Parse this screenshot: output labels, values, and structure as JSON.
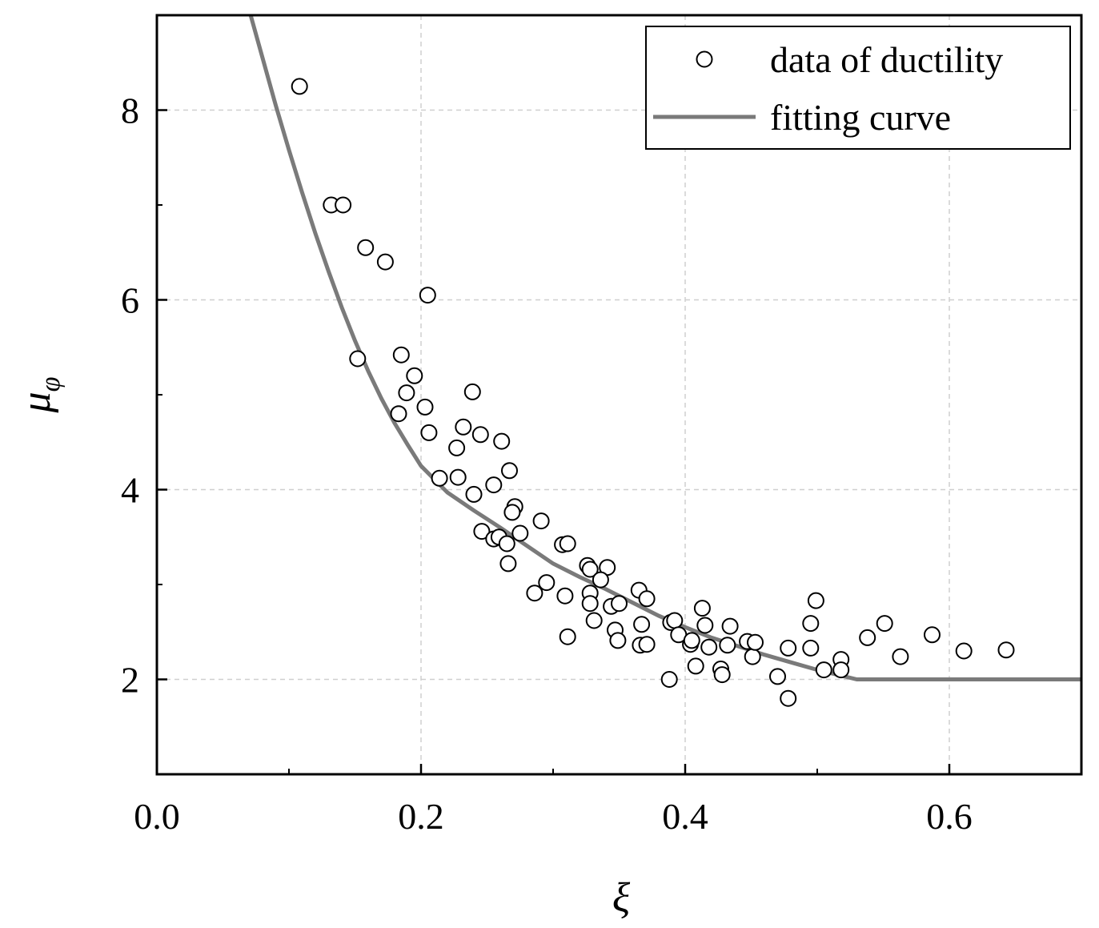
{
  "chart_data": {
    "type": "scatter",
    "xlabel": "ξ",
    "ylabel": "μ",
    "ylabel_subscript": "φ",
    "xlim": [
      0.0,
      0.7
    ],
    "ylim": [
      1.0,
      9.0
    ],
    "x_ticks": [
      0.0,
      0.2,
      0.4,
      0.6
    ],
    "x_tick_labels": [
      "0.0",
      "0.2",
      "0.4",
      "0.6"
    ],
    "x_minor_ticks": [
      0.1,
      0.3,
      0.5
    ],
    "y_ticks": [
      2,
      4,
      6,
      8
    ],
    "y_tick_labels": [
      "2",
      "4",
      "6",
      "8"
    ],
    "y_minor_ticks": [
      3,
      5,
      7
    ],
    "grid": true,
    "legend": {
      "position": "top-right",
      "entries": [
        "data of ductility",
        "fitting curve"
      ]
    },
    "series": [
      {
        "name": "data of ductility",
        "kind": "scatter",
        "marker": "open-circle",
        "color": "#000000",
        "points": [
          [
            0.108,
            8.25
          ],
          [
            0.132,
            7.0
          ],
          [
            0.141,
            7.0
          ],
          [
            0.158,
            6.55
          ],
          [
            0.173,
            6.4
          ],
          [
            0.205,
            6.05
          ],
          [
            0.152,
            5.38
          ],
          [
            0.185,
            5.42
          ],
          [
            0.195,
            5.2
          ],
          [
            0.189,
            5.02
          ],
          [
            0.183,
            4.8
          ],
          [
            0.203,
            4.87
          ],
          [
            0.206,
            4.6
          ],
          [
            0.239,
            5.03
          ],
          [
            0.232,
            4.66
          ],
          [
            0.245,
            4.58
          ],
          [
            0.227,
            4.44
          ],
          [
            0.261,
            4.51
          ],
          [
            0.267,
            4.2
          ],
          [
            0.214,
            4.12
          ],
          [
            0.228,
            4.13
          ],
          [
            0.255,
            4.05
          ],
          [
            0.24,
            3.95
          ],
          [
            0.271,
            3.82
          ],
          [
            0.269,
            3.76
          ],
          [
            0.275,
            3.54
          ],
          [
            0.291,
            3.67
          ],
          [
            0.246,
            3.56
          ],
          [
            0.255,
            3.48
          ],
          [
            0.259,
            3.5
          ],
          [
            0.265,
            3.43
          ],
          [
            0.266,
            3.22
          ],
          [
            0.307,
            3.42
          ],
          [
            0.311,
            3.43
          ],
          [
            0.326,
            3.2
          ],
          [
            0.328,
            3.16
          ],
          [
            0.341,
            3.18
          ],
          [
            0.336,
            3.05
          ],
          [
            0.295,
            3.02
          ],
          [
            0.286,
            2.91
          ],
          [
            0.309,
            2.88
          ],
          [
            0.328,
            2.91
          ],
          [
            0.328,
            2.8
          ],
          [
            0.344,
            2.77
          ],
          [
            0.35,
            2.8
          ],
          [
            0.365,
            2.94
          ],
          [
            0.371,
            2.85
          ],
          [
            0.331,
            2.62
          ],
          [
            0.347,
            2.52
          ],
          [
            0.349,
            2.41
          ],
          [
            0.311,
            2.45
          ],
          [
            0.367,
            2.58
          ],
          [
            0.366,
            2.36
          ],
          [
            0.371,
            2.37
          ],
          [
            0.389,
            2.6
          ],
          [
            0.392,
            2.62
          ],
          [
            0.395,
            2.47
          ],
          [
            0.404,
            2.37
          ],
          [
            0.405,
            2.41
          ],
          [
            0.413,
            2.75
          ],
          [
            0.415,
            2.57
          ],
          [
            0.418,
            2.34
          ],
          [
            0.432,
            2.36
          ],
          [
            0.434,
            2.56
          ],
          [
            0.447,
            2.4
          ],
          [
            0.451,
            2.24
          ],
          [
            0.453,
            2.39
          ],
          [
            0.408,
            2.14
          ],
          [
            0.427,
            2.11
          ],
          [
            0.428,
            2.05
          ],
          [
            0.388,
            2.0
          ],
          [
            0.47,
            2.03
          ],
          [
            0.478,
            1.8
          ],
          [
            0.478,
            2.33
          ],
          [
            0.495,
            2.59
          ],
          [
            0.495,
            2.33
          ],
          [
            0.499,
            2.83
          ],
          [
            0.505,
            2.1
          ],
          [
            0.518,
            2.21
          ],
          [
            0.518,
            2.1
          ],
          [
            0.538,
            2.44
          ],
          [
            0.551,
            2.59
          ],
          [
            0.563,
            2.24
          ],
          [
            0.587,
            2.47
          ],
          [
            0.611,
            2.3
          ],
          [
            0.643,
            2.31
          ]
        ]
      },
      {
        "name": "fitting curve",
        "kind": "line",
        "color": "#7a7a7a",
        "x": [
          0.07,
          0.08,
          0.09,
          0.1,
          0.11,
          0.12,
          0.13,
          0.14,
          0.15,
          0.16,
          0.17,
          0.18,
          0.19,
          0.2,
          0.22,
          0.24,
          0.26,
          0.28,
          0.3,
          0.32,
          0.34,
          0.36,
          0.38,
          0.4,
          0.42,
          0.44,
          0.46,
          0.48,
          0.5,
          0.53,
          0.56,
          0.6,
          0.65,
          0.7
        ],
        "y": [
          9.05,
          8.55,
          8.05,
          7.58,
          7.13,
          6.7,
          6.3,
          5.92,
          5.57,
          5.25,
          4.96,
          4.7,
          4.47,
          4.25,
          3.97,
          3.78,
          3.6,
          3.41,
          3.22,
          3.08,
          2.95,
          2.81,
          2.67,
          2.55,
          2.44,
          2.35,
          2.26,
          2.18,
          2.1,
          2.0,
          2.0,
          2.0,
          2.0,
          2.0
        ]
      }
    ]
  }
}
